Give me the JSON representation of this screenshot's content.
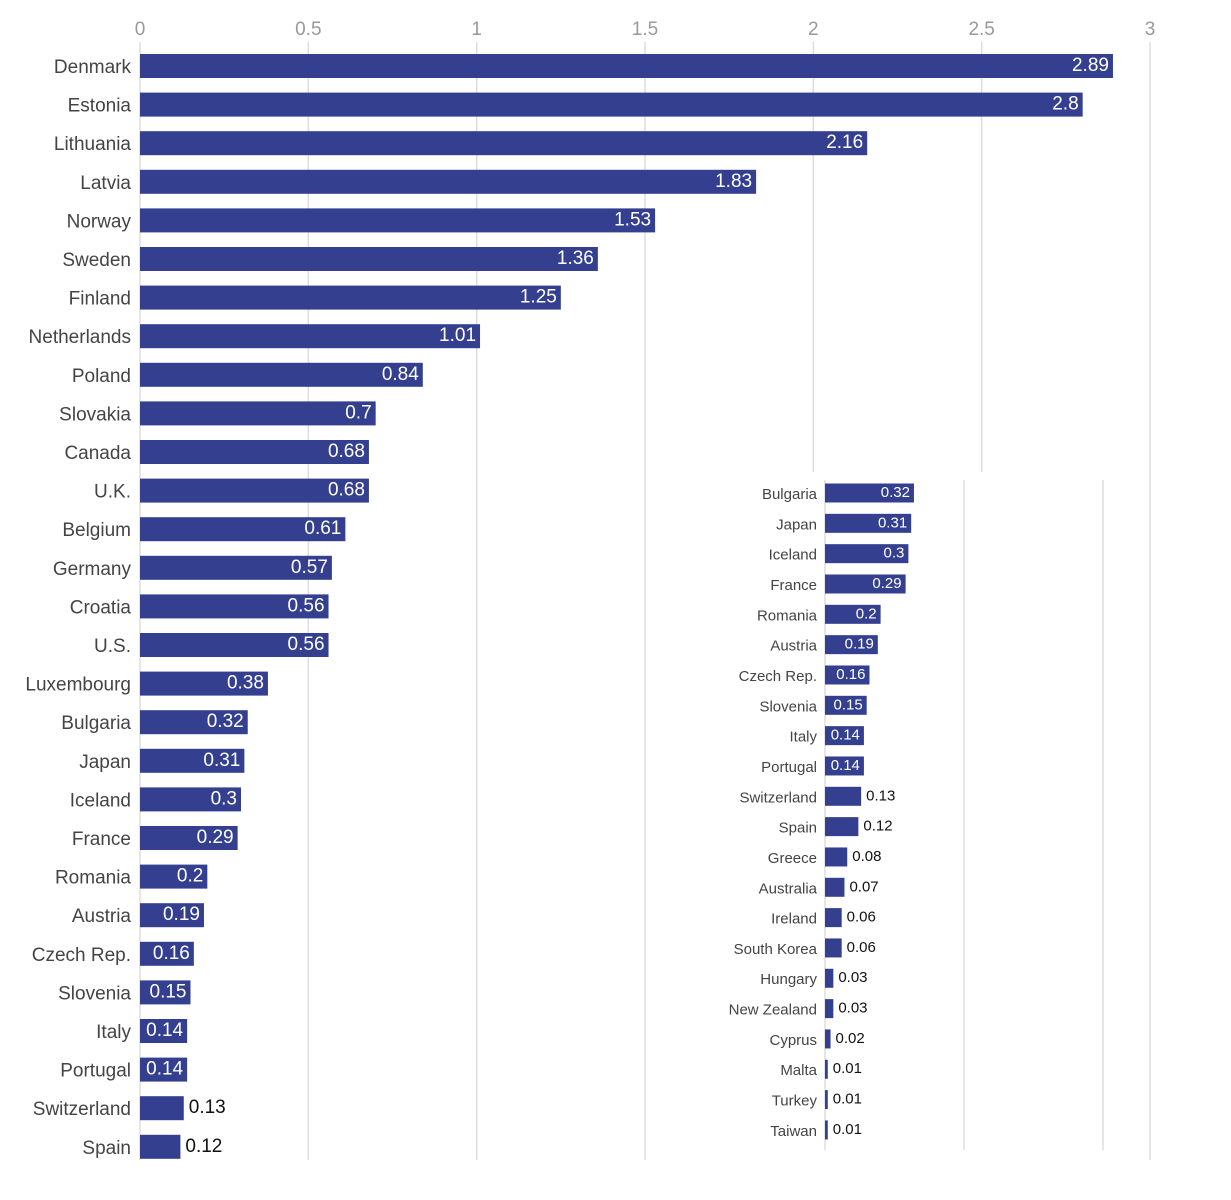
{
  "chart_data": [
    {
      "type": "hbar",
      "color": "#34408f",
      "categories": [
        "Denmark",
        "Estonia",
        "Lithuania",
        "Latvia",
        "Norway",
        "Sweden",
        "Finland",
        "Netherlands",
        "Poland",
        "Slovakia",
        "Canada",
        "U.K.",
        "Belgium",
        "Germany",
        "Croatia",
        "U.S.",
        "Luxembourg",
        "Bulgaria",
        "Japan",
        "Iceland",
        "France",
        "Romania",
        "Austria",
        "Czech Rep.",
        "Slovenia",
        "Italy",
        "Portugal",
        "Switzerland",
        "Spain"
      ],
      "values": [
        2.89,
        2.8,
        2.16,
        1.83,
        1.53,
        1.36,
        1.25,
        1.01,
        0.84,
        0.7,
        0.68,
        0.68,
        0.61,
        0.57,
        0.56,
        0.56,
        0.38,
        0.32,
        0.31,
        0.3,
        0.29,
        0.2,
        0.19,
        0.16,
        0.15,
        0.14,
        0.14,
        0.13,
        0.12
      ],
      "xlim": [
        0,
        3
      ],
      "xticks": [
        0,
        0.5,
        1,
        1.5,
        2,
        2.5,
        3
      ],
      "grid": true
    },
    {
      "type": "hbar",
      "color": "#34408f",
      "categories": [
        "Bulgaria",
        "Japan",
        "Iceland",
        "France",
        "Romania",
        "Austria",
        "Czech Rep.",
        "Slovenia",
        "Italy",
        "Portugal",
        "Switzerland",
        "Spain",
        "Greece",
        "Australia",
        "Ireland",
        "South Korea",
        "Hungary",
        "New Zealand",
        "Cyprus",
        "Malta",
        "Turkey",
        "Taiwan"
      ],
      "values": [
        0.32,
        0.31,
        0.3,
        0.29,
        0.2,
        0.19,
        0.16,
        0.15,
        0.14,
        0.14,
        0.13,
        0.12,
        0.08,
        0.07,
        0.06,
        0.06,
        0.03,
        0.03,
        0.02,
        0.01,
        0.01,
        0.01
      ],
      "xlim": [
        0,
        1
      ],
      "xgrid": [
        0,
        0.5,
        1
      ],
      "grid": true
    }
  ]
}
